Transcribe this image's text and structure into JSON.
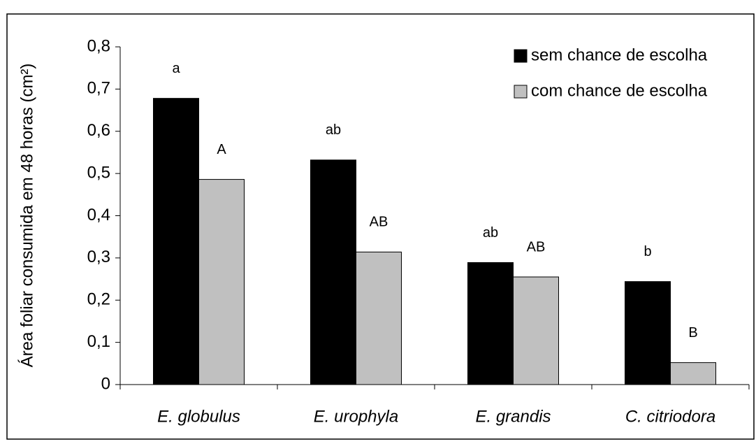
{
  "chart_data": {
    "type": "bar",
    "y_label": "Área foliar consumida em 48 horas (cm²)",
    "categories": [
      "E. globulus",
      "E. urophyla",
      "E. grandis",
      "C. citriodora"
    ],
    "series": [
      {
        "name": "sem chance de escolha",
        "color": "#000000",
        "values": [
          0.678,
          0.532,
          0.289,
          0.244
        ],
        "annotations": [
          "a",
          "ab",
          "ab",
          "b"
        ]
      },
      {
        "name": "com chance de escolha",
        "color": "#c0c0c0",
        "values": [
          0.486,
          0.314,
          0.255,
          0.052
        ],
        "annotations": [
          "A",
          "AB",
          "AB",
          "B"
        ]
      }
    ],
    "ylim": [
      0,
      0.8
    ],
    "yticks": [
      0,
      {
        "value": 0.1,
        "label": "0,1"
      },
      {
        "value": 0.2,
        "label": "0,2"
      },
      {
        "value": 0.3,
        "label": "0,3"
      },
      {
        "value": 0.4,
        "label": "0,4"
      },
      {
        "value": 0.5,
        "label": "0,5"
      },
      {
        "value": 0.6,
        "label": "0,6"
      },
      {
        "value": 0.7,
        "label": "0,7"
      },
      {
        "value": 0.8,
        "label": "0,8"
      }
    ],
    "grid": false,
    "legend": "top-right"
  }
}
